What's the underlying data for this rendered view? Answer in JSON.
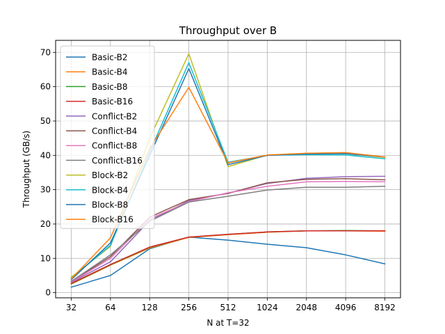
{
  "chart_data": {
    "type": "line",
    "title": "Throughput over B",
    "xlabel": "N at T=32",
    "ylabel": "Throughput (GB/s)",
    "x": [
      "32",
      "64",
      "128",
      "256",
      "512",
      "1024",
      "2048",
      "4096",
      "8192"
    ],
    "x_scale": "categorical",
    "ylim": [
      -1.5,
      73.5
    ],
    "yticks": [
      0,
      10,
      20,
      30,
      40,
      50,
      60,
      70
    ],
    "grid": true,
    "legend_position": "top-left",
    "series": [
      {
        "name": "Basic-B2",
        "color": "#1f77b4",
        "values": [
          1.6,
          5.0,
          12.8,
          16.2,
          15.3,
          14.1,
          13.1,
          11.0,
          8.4
        ]
      },
      {
        "name": "Basic-B4",
        "color": "#ff7f0e",
        "values": [
          2.5,
          8.0,
          13.0,
          16.1,
          16.9,
          17.6,
          18.0,
          18.0,
          17.9
        ]
      },
      {
        "name": "Basic-B8",
        "color": "#2ca02c",
        "values": [
          2.6,
          8.1,
          13.2,
          16.2,
          17.0,
          17.7,
          18.0,
          18.1,
          18.0
        ]
      },
      {
        "name": "Basic-B16",
        "color": "#d62728",
        "values": [
          2.7,
          8.2,
          13.3,
          16.2,
          17.0,
          17.7,
          18.0,
          18.0,
          18.0
        ]
      },
      {
        "name": "Conflict-B2",
        "color": "#9467bd",
        "values": [
          3.0,
          9.0,
          21.0,
          26.8,
          29.0,
          31.8,
          33.3,
          33.8,
          33.9
        ]
      },
      {
        "name": "Conflict-B4",
        "color": "#8c564b",
        "values": [
          3.2,
          10.5,
          22.0,
          27.1,
          28.9,
          32.0,
          33.0,
          33.2,
          32.9
        ]
      },
      {
        "name": "Conflict-B8",
        "color": "#e377c2",
        "values": [
          3.1,
          10.0,
          21.5,
          26.5,
          29.1,
          31.0,
          32.3,
          32.4,
          32.3
        ]
      },
      {
        "name": "Conflict-B16",
        "color": "#7f7f7f",
        "values": [
          3.3,
          11.0,
          20.8,
          26.4,
          28.1,
          29.9,
          30.7,
          30.7,
          31.0
        ]
      },
      {
        "name": "Block-B2",
        "color": "#bcbd22",
        "values": [
          4.5,
          13.5,
          45.0,
          69.6,
          36.7,
          40.1,
          40.4,
          40.5,
          39.4
        ]
      },
      {
        "name": "Block-B4",
        "color": "#17becf",
        "values": [
          4.2,
          13.8,
          41.0,
          67.0,
          38.0,
          40.0,
          40.2,
          40.1,
          39.0
        ]
      },
      {
        "name": "Block-B8",
        "color": "#1f77b4",
        "values": [
          3.8,
          14.5,
          40.0,
          65.3,
          37.3,
          40.0,
          40.4,
          40.5,
          39.5
        ]
      },
      {
        "name": "Block-B16",
        "color": "#ff7f0e",
        "values": [
          4.0,
          16.0,
          42.0,
          59.8,
          37.8,
          40.1,
          40.6,
          40.8,
          39.5
        ]
      }
    ]
  }
}
